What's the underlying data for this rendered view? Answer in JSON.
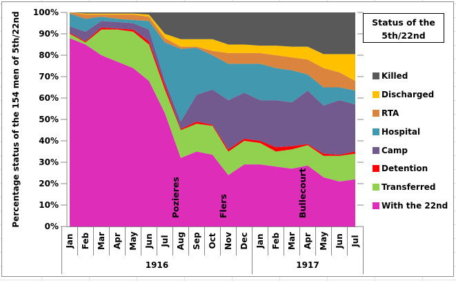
{
  "chart_data": {
    "type": "area",
    "stacked": true,
    "title": "Status of the 5th/22nd",
    "ylabel": "Percentage status of the 154  men of 5th/22nd",
    "xlabel": "",
    "ylim": [
      0,
      100
    ],
    "yticks": [
      "0%",
      "10%",
      "20%",
      "30%",
      "40%",
      "50%",
      "60%",
      "70%",
      "80%",
      "90%",
      "100%"
    ],
    "categories": [
      "Jan",
      "Feb",
      "Mar",
      "Apr",
      "May",
      "Jun",
      "Jul",
      "Aug",
      "Sep",
      "Oct",
      "Nov",
      "Dec",
      "Jan",
      "Feb",
      "Mar",
      "Apr",
      "May",
      "Jun",
      "Jul"
    ],
    "year_groups": [
      {
        "label": "1916",
        "count": 12
      },
      {
        "label": "1917",
        "count": 7
      }
    ],
    "legend_position": "right",
    "series": [
      {
        "name": "With the 22nd",
        "color": "#dd2db9",
        "values": [
          88,
          85,
          80,
          77,
          74,
          68,
          53,
          32,
          35,
          33.5,
          24,
          29,
          29,
          28,
          27,
          28.5,
          23,
          21,
          22
        ]
      },
      {
        "name": "Transferred",
        "color": "#92d050",
        "values": [
          2,
          1,
          12,
          15,
          17,
          17,
          11,
          13,
          13,
          13.5,
          11,
          11,
          10,
          7,
          9,
          9.5,
          10,
          12,
          12
        ]
      },
      {
        "name": "Detention",
        "color": "#ff0000",
        "values": [
          0.5,
          0.5,
          1,
          0.5,
          1,
          1.5,
          2,
          0.5,
          1,
          0.5,
          1,
          1,
          1,
          2,
          1.5,
          0.5,
          1,
          0.5,
          1
        ]
      },
      {
        "name": "Camp",
        "color": "#725a8f",
        "values": [
          3,
          4.5,
          3,
          3,
          3,
          5.5,
          2,
          3.5,
          12.5,
          16.5,
          23,
          21.5,
          19,
          22,
          20.5,
          25,
          22.5,
          25.5,
          22
        ]
      },
      {
        "name": "Hospital",
        "color": "#4198af",
        "values": [
          6,
          6,
          2,
          1.5,
          1.5,
          4,
          18,
          34,
          22,
          16,
          17,
          13.5,
          17,
          15,
          15,
          7.5,
          8.5,
          6,
          6.5
        ]
      },
      {
        "name": "RTA",
        "color": "#db843d",
        "values": [
          0.5,
          2,
          1,
          2,
          2.5,
          2,
          2,
          1,
          0.5,
          2,
          5,
          5,
          5,
          6,
          6,
          7,
          9,
          7,
          4.5
        ]
      },
      {
        "name": "Discharged",
        "color": "#ffc000",
        "values": [
          0,
          0.5,
          0.5,
          0.5,
          0.5,
          1,
          2,
          3.5,
          3.5,
          5.5,
          4,
          4,
          3.5,
          4.5,
          5,
          6,
          6.5,
          8.5,
          12.5
        ]
      },
      {
        "name": "Killed",
        "color": "#595959",
        "values": [
          0,
          0.5,
          0.5,
          0.5,
          0.5,
          1,
          10,
          12.5,
          12.5,
          12.5,
          15,
          15,
          15.5,
          15.5,
          16,
          16,
          19.5,
          19.5,
          19.5
        ]
      }
    ],
    "annotations": [
      {
        "text": "Pozieres",
        "category_index": 7
      },
      {
        "text": "Flers",
        "category_index": 10
      },
      {
        "text": "Bullecourt",
        "category_index": 15
      }
    ]
  },
  "legend": {
    "title_line1": "Status of the",
    "title_line2": "5th/22nd",
    "order": [
      "Killed",
      "Discharged",
      "RTA",
      "Hospital",
      "Camp",
      "Detention",
      "Transferred",
      "With the 22nd"
    ]
  }
}
